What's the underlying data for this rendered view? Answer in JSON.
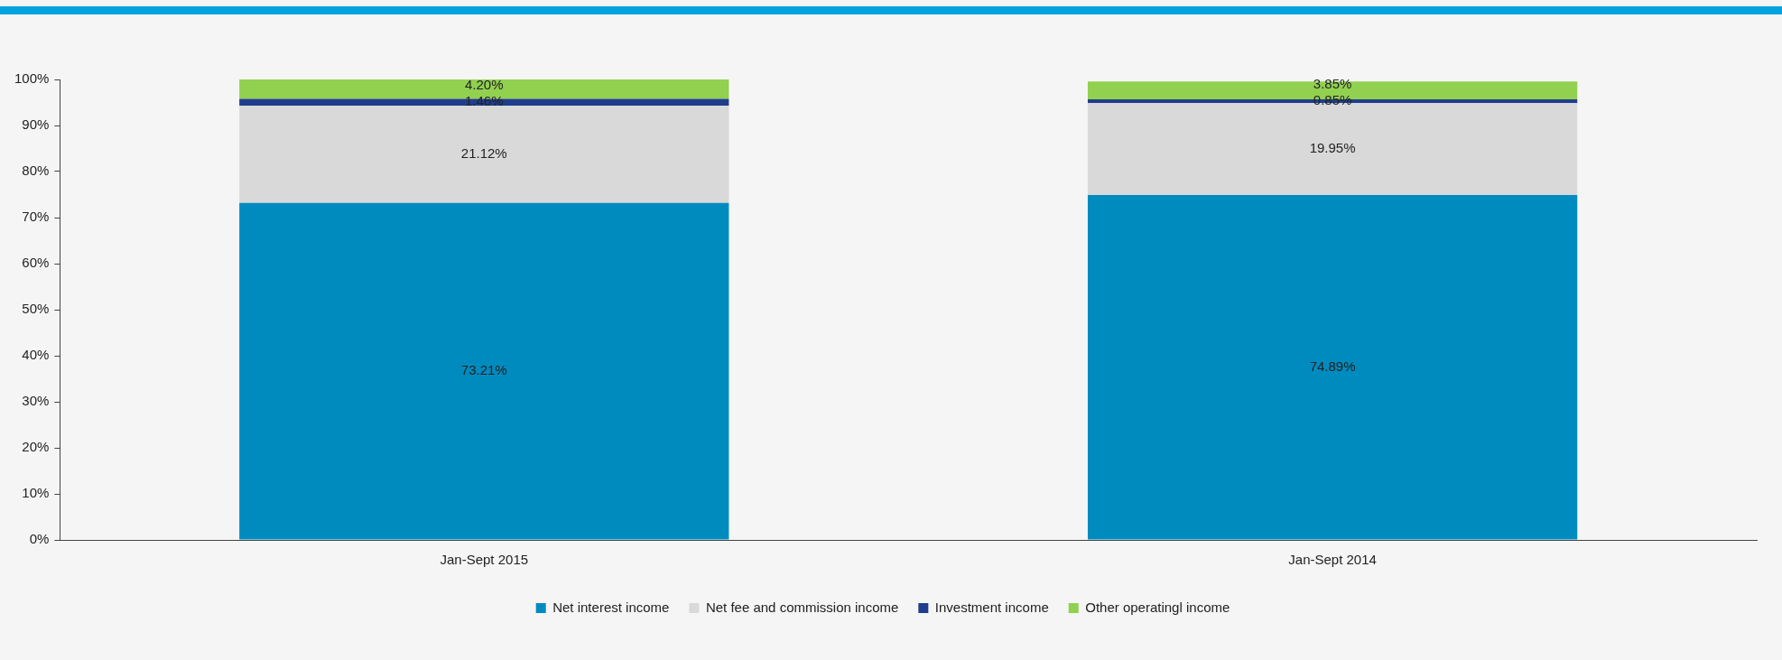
{
  "chart_data": {
    "type": "bar",
    "stacked": true,
    "categories": [
      "Jan-Sept 2015",
      "Jan-Sept 2014"
    ],
    "series": [
      {
        "name": "Net interest income",
        "color": "#008bbf",
        "values": [
          73.21,
          74.89
        ],
        "value_labels": [
          "73.21%",
          "74.89%"
        ]
      },
      {
        "name": "Net fee and commission income",
        "color": "#d9d9d9",
        "values": [
          21.12,
          19.95
        ],
        "value_labels": [
          "21.12%",
          "19.95%"
        ]
      },
      {
        "name": "Investment income",
        "color": "#1f3d8c",
        "values": [
          1.46,
          0.85
        ],
        "value_labels": [
          "1.46%",
          "0.85%"
        ]
      },
      {
        "name": "Other operatingl income",
        "color": "#92d050",
        "values": [
          4.2,
          3.85
        ],
        "value_labels": [
          "4.20%",
          "3.85%"
        ]
      }
    ],
    "ylim": [
      0,
      100
    ],
    "yticks": [
      {
        "value": 0,
        "label": "0%"
      },
      {
        "value": 10,
        "label": "10%"
      },
      {
        "value": 20,
        "label": "20%"
      },
      {
        "value": 30,
        "label": "30%"
      },
      {
        "value": 40,
        "label": "40%"
      },
      {
        "value": 50,
        "label": "50%"
      },
      {
        "value": 60,
        "label": "60%"
      },
      {
        "value": 70,
        "label": "70%"
      },
      {
        "value": 80,
        "label": "80%"
      },
      {
        "value": 90,
        "label": "90%"
      },
      {
        "value": 100,
        "label": "100%"
      }
    ],
    "grid": false,
    "legend": "bottom"
  }
}
